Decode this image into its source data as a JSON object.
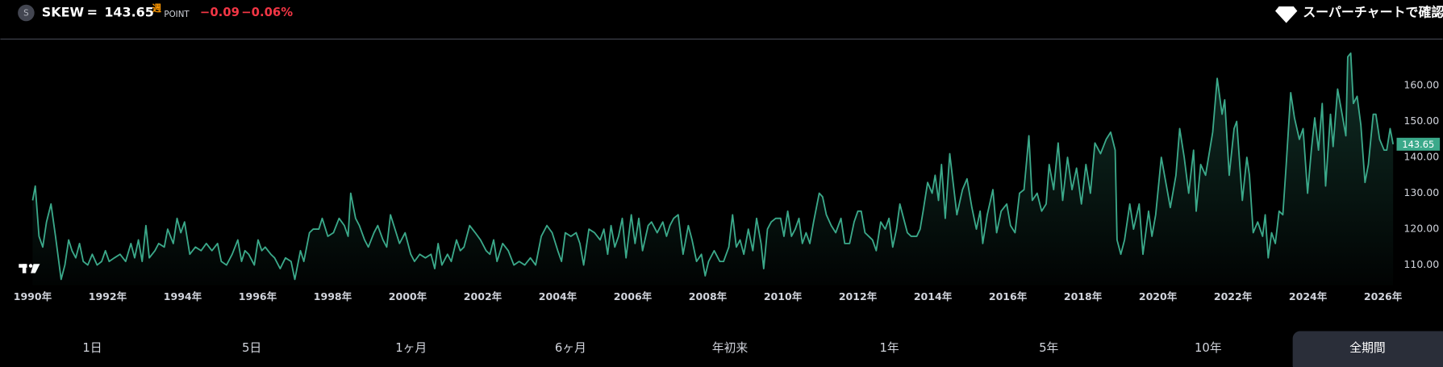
{
  "header": {
    "icon": "S",
    "symbol": "SKEW",
    "separator": "=",
    "price": "143.65",
    "interval": "週",
    "unit": "POINT",
    "change": "−0.09",
    "change_percent": "−0.06%",
    "link": "スーパーチャートで確認"
  },
  "chart_data": {
    "type": "line",
    "color": "#3ba98a",
    "grid": false,
    "xlim": [
      1989.14,
      2026.29
    ],
    "ylim": [
      104.4,
      172.8
    ],
    "xticks": [
      {
        "value": 1990,
        "label": "1990年"
      },
      {
        "value": 1992,
        "label": "1992年"
      },
      {
        "value": 1994,
        "label": "1994年"
      },
      {
        "value": 1996,
        "label": "1996年"
      },
      {
        "value": 1998,
        "label": "1998年"
      },
      {
        "value": 2000,
        "label": "2000年"
      },
      {
        "value": 2002,
        "label": "2002年"
      },
      {
        "value": 2004,
        "label": "2004年"
      },
      {
        "value": 2006,
        "label": "2006年"
      },
      {
        "value": 2008,
        "label": "2008年"
      },
      {
        "value": 2010,
        "label": "2010年"
      },
      {
        "value": 2012,
        "label": "2012年"
      },
      {
        "value": 2014,
        "label": "2014年"
      },
      {
        "value": 2016,
        "label": "2016年"
      },
      {
        "value": 2018,
        "label": "2018年"
      },
      {
        "value": 2020,
        "label": "2020年"
      },
      {
        "value": 2022,
        "label": "2022年"
      },
      {
        "value": 2024,
        "label": "2024年"
      },
      {
        "value": 2026,
        "label": "2026年"
      }
    ],
    "yticks": [
      {
        "value": 110,
        "label": "110.00"
      },
      {
        "value": 120,
        "label": "120.00"
      },
      {
        "value": 130,
        "label": "130.00"
      },
      {
        "value": 140,
        "label": "140.00"
      },
      {
        "value": 150,
        "label": "150.00"
      },
      {
        "value": 160,
        "label": "160.00"
      }
    ],
    "x": [
      1990.0,
      1990.07,
      1990.17,
      1990.27,
      1990.37,
      1990.49,
      1990.61,
      1990.76,
      1990.86,
      1990.96,
      1991.05,
      1991.15,
      1991.25,
      1991.35,
      1991.47,
      1991.59,
      1991.72,
      1991.84,
      1991.94,
      1992.04,
      1992.18,
      1992.33,
      1992.48,
      1992.62,
      1992.72,
      1992.82,
      1992.92,
      1993.02,
      1993.11,
      1993.26,
      1993.36,
      1993.51,
      1993.6,
      1993.75,
      1993.85,
      1993.95,
      1994.05,
      1994.19,
      1994.34,
      1994.49,
      1994.63,
      1994.78,
      1994.93,
      1995.03,
      1995.17,
      1995.32,
      1995.47,
      1995.57,
      1995.66,
      1995.76,
      1995.91,
      1996.01,
      1996.11,
      1996.2,
      1996.35,
      1996.45,
      1996.6,
      1996.74,
      1996.89,
      1996.99,
      1997.14,
      1997.23,
      1997.38,
      1997.48,
      1997.63,
      1997.72,
      1997.87,
      1998.02,
      1998.17,
      1998.31,
      1998.41,
      1998.48,
      1998.61,
      1998.71,
      1998.85,
      1998.95,
      1999.1,
      1999.2,
      1999.34,
      1999.44,
      1999.54,
      1999.69,
      1999.78,
      1999.93,
      2000.08,
      2000.18,
      2000.32,
      2000.47,
      2000.62,
      2000.72,
      2000.81,
      2000.91,
      2001.06,
      2001.16,
      2001.3,
      2001.4,
      2001.5,
      2001.65,
      2001.8,
      2001.94,
      2002.09,
      2002.19,
      2002.29,
      2002.38,
      2002.53,
      2002.68,
      2002.83,
      2002.97,
      2003.12,
      2003.27,
      2003.41,
      2003.56,
      2003.71,
      2003.85,
      2004.0,
      2004.1,
      2004.2,
      2004.35,
      2004.49,
      2004.59,
      2004.69,
      2004.83,
      2004.98,
      2005.13,
      2005.23,
      2005.33,
      2005.42,
      2005.52,
      2005.62,
      2005.72,
      2005.82,
      2005.96,
      2006.06,
      2006.16,
      2006.26,
      2006.41,
      2006.5,
      2006.65,
      2006.8,
      2006.9,
      2006.99,
      2007.09,
      2007.21,
      2007.34,
      2007.48,
      2007.58,
      2007.7,
      2007.83,
      2007.93,
      2008.02,
      2008.17,
      2008.32,
      2008.42,
      2008.56,
      2008.66,
      2008.76,
      2008.86,
      2008.96,
      2009.08,
      2009.2,
      2009.3,
      2009.42,
      2009.49,
      2009.59,
      2009.69,
      2009.81,
      2009.94,
      2010.03,
      2010.13,
      2010.23,
      2010.33,
      2010.43,
      2010.52,
      2010.62,
      2010.72,
      2010.82,
      2010.97,
      2011.06,
      2011.16,
      2011.29,
      2011.41,
      2011.55,
      2011.65,
      2011.78,
      2011.9,
      2012.0,
      2012.09,
      2012.19,
      2012.29,
      2012.39,
      2012.49,
      2012.61,
      2012.73,
      2012.83,
      2012.93,
      2013.03,
      2013.12,
      2013.22,
      2013.32,
      2013.42,
      2013.57,
      2013.66,
      2013.74,
      2013.86,
      2013.98,
      2014.06,
      2014.15,
      2014.23,
      2014.33,
      2014.45,
      2014.64,
      2014.79,
      2014.91,
      2015.04,
      2015.16,
      2015.26,
      2015.33,
      2015.45,
      2015.6,
      2015.7,
      2015.82,
      2015.97,
      2016.07,
      2016.19,
      2016.31,
      2016.43,
      2016.56,
      2016.65,
      2016.78,
      2016.9,
      2017.02,
      2017.1,
      2017.22,
      2017.34,
      2017.46,
      2017.59,
      2017.71,
      2017.83,
      2017.96,
      2018.08,
      2018.2,
      2018.32,
      2018.47,
      2018.62,
      2018.74,
      2018.86,
      2018.91,
      2019.01,
      2019.11,
      2019.25,
      2019.35,
      2019.5,
      2019.6,
      2019.75,
      2019.84,
      2019.94,
      2020.09,
      2020.21,
      2020.33,
      2020.48,
      2020.58,
      2020.7,
      2020.82,
      2020.95,
      2021.02,
      2021.14,
      2021.27,
      2021.46,
      2021.58,
      2021.71,
      2021.78,
      2021.9,
      2022.03,
      2022.1,
      2022.25,
      2022.37,
      2022.44,
      2022.54,
      2022.66,
      2022.79,
      2022.86,
      2022.94,
      2023.03,
      2023.13,
      2023.23,
      2023.33,
      2023.42,
      2023.54,
      2023.64,
      2023.77,
      2023.87,
      2023.99,
      2024.09,
      2024.18,
      2024.28,
      2024.38,
      2024.47,
      2024.6,
      2024.67,
      2024.79,
      2024.91,
      2025.01,
      2025.06,
      2025.14,
      2025.21,
      2025.31,
      2025.41,
      2025.52,
      2025.61,
      2025.74,
      2025.81,
      2025.91,
      2026.03,
      2026.1,
      2026.19,
      2026.27
    ],
    "values": [
      128,
      132,
      118,
      115,
      122,
      127,
      118,
      106,
      110,
      117,
      114,
      112,
      116,
      111,
      110,
      113,
      110,
      111,
      114,
      111,
      112,
      113,
      111,
      116,
      112,
      117,
      111,
      121,
      112,
      114,
      116,
      115,
      120,
      116,
      123,
      119,
      122,
      113,
      115,
      114,
      116,
      114,
      116,
      111,
      110,
      113,
      117,
      111,
      114,
      113,
      110,
      117,
      114,
      115,
      113,
      112,
      109,
      112,
      111,
      106,
      114,
      111,
      119,
      120,
      120,
      123,
      118,
      119,
      123,
      121,
      118,
      130,
      123,
      121,
      117,
      115,
      119,
      121,
      117,
      115,
      124,
      119,
      116,
      119,
      113,
      111,
      113,
      112,
      113,
      109,
      116,
      110,
      113,
      111,
      117,
      114,
      115,
      121,
      119,
      117,
      114,
      113,
      117,
      111,
      116,
      114,
      110,
      111,
      110,
      112,
      110,
      118,
      121,
      119,
      114,
      111,
      119,
      118,
      119,
      116,
      110,
      120,
      119,
      117,
      120,
      113,
      121,
      115,
      118,
      123,
      112,
      124,
      116,
      123,
      114,
      121,
      122,
      119,
      122,
      118,
      121,
      123,
      124,
      113,
      121,
      117,
      111,
      113,
      107,
      111,
      114,
      111,
      111,
      115,
      124,
      115,
      117,
      113,
      120,
      114,
      123,
      116,
      109,
      120,
      122,
      123,
      123,
      118,
      125,
      118,
      120,
      123,
      116,
      119,
      116,
      122,
      130,
      129,
      124,
      121,
      119,
      123,
      116,
      116,
      122,
      125,
      125,
      119,
      118,
      117,
      114,
      122,
      120,
      123,
      115,
      120,
      127,
      123,
      119,
      118,
      118,
      120,
      125,
      133,
      130,
      135,
      128,
      138,
      123,
      141,
      124,
      131,
      134,
      126,
      120,
      125,
      116,
      124,
      131,
      119,
      125,
      127,
      121,
      119,
      130,
      131,
      146,
      128,
      130,
      125,
      127,
      138,
      131,
      144,
      128,
      140,
      131,
      137,
      127,
      138,
      130,
      144,
      141,
      145,
      147,
      142,
      117,
      113,
      117,
      127,
      120,
      127,
      113,
      125,
      118,
      124,
      140,
      133,
      126,
      135,
      148,
      140,
      130,
      142,
      125,
      138,
      135,
      147,
      162,
      152,
      156,
      135,
      148,
      150,
      128,
      140,
      135,
      119,
      122,
      118,
      124,
      112,
      119,
      116,
      125,
      124,
      138,
      158,
      151,
      145,
      148,
      130,
      142,
      151,
      142,
      155,
      132,
      152,
      143,
      159,
      152,
      146,
      168,
      169,
      155,
      157,
      149,
      133,
      138,
      152,
      152,
      145,
      142,
      142,
      148,
      143.65
    ]
  },
  "ranges": {
    "buttons": [
      "1日",
      "5日",
      "1ヶ月",
      "6ヶ月",
      "年初来",
      "1年",
      "5年",
      "10年",
      "全期間"
    ],
    "active": 8
  }
}
